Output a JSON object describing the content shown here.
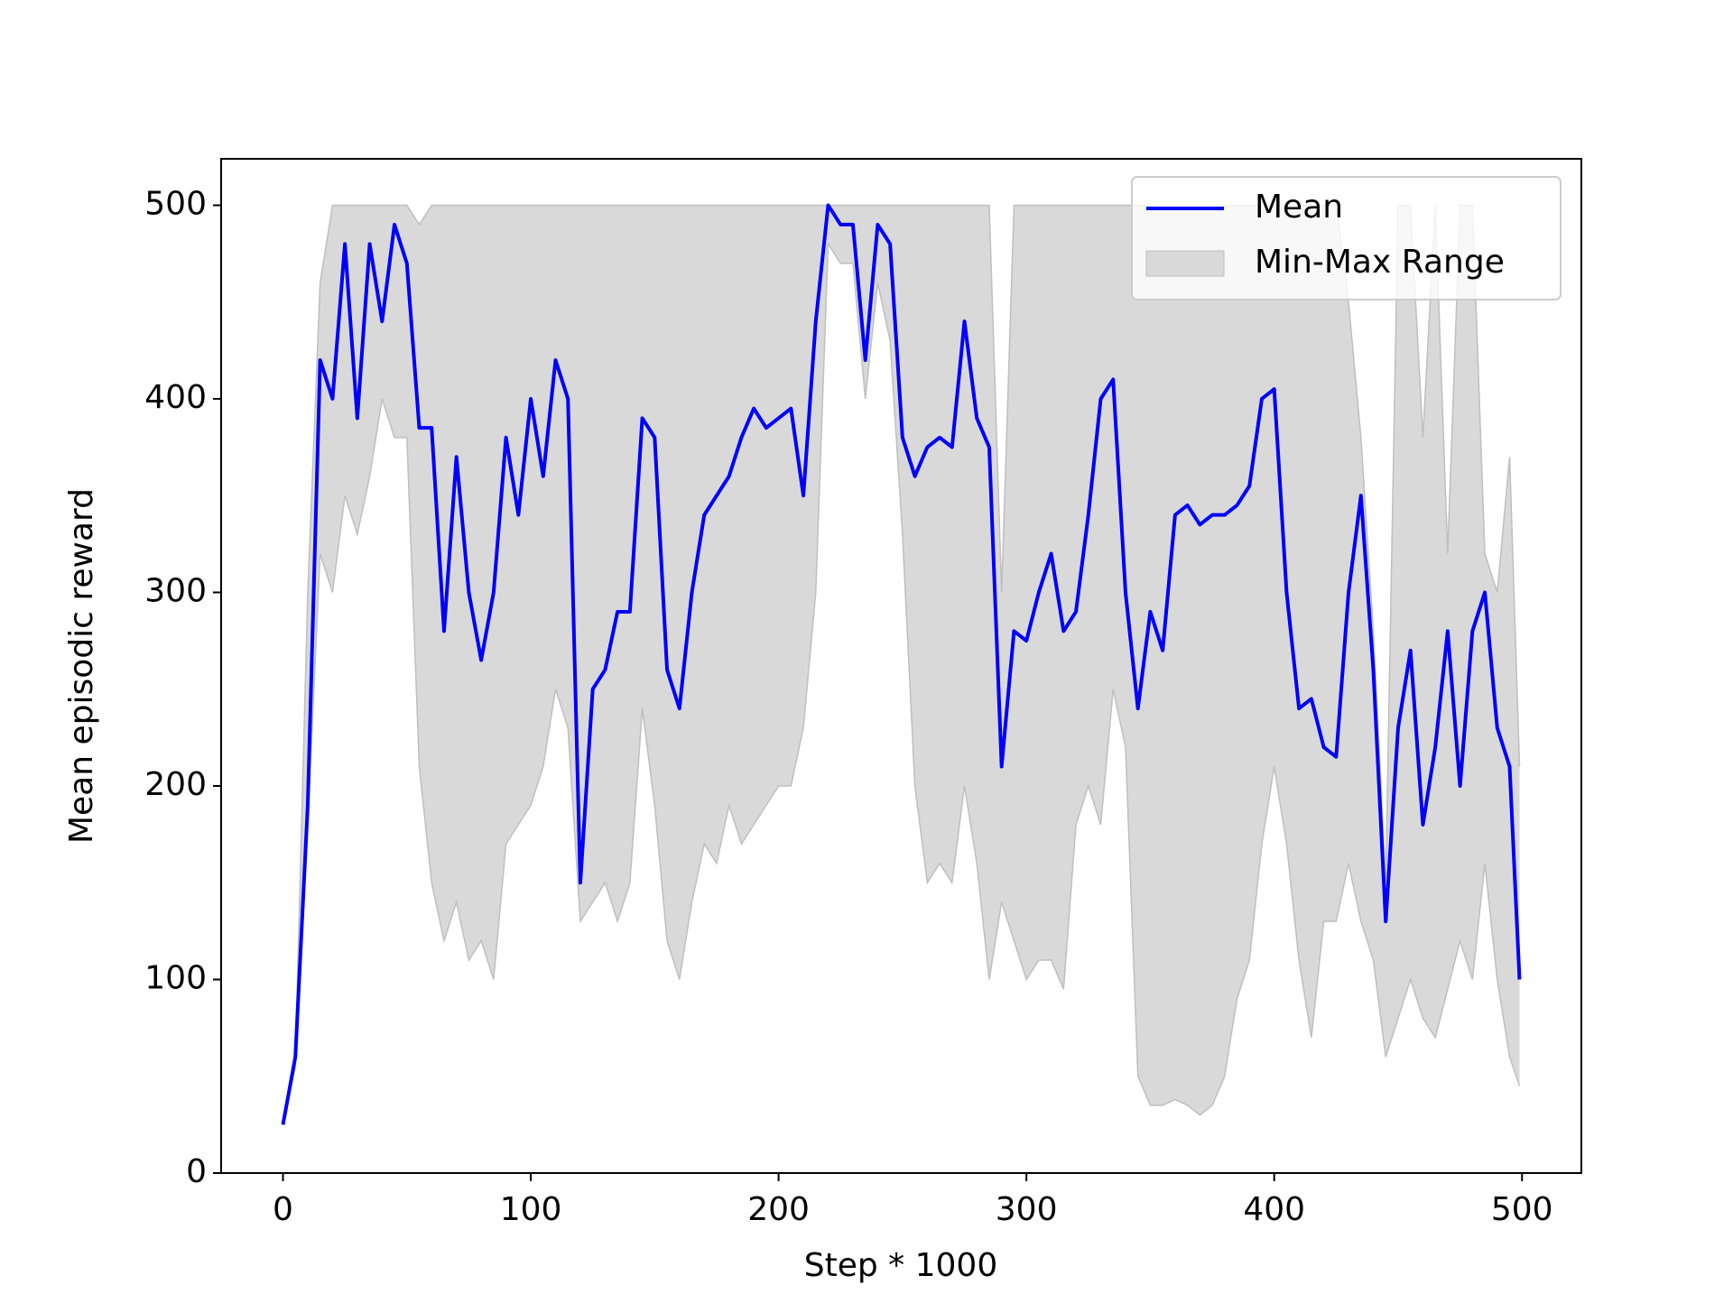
{
  "chart_data": {
    "type": "line",
    "x_label": "Step * 1000",
    "y_label": "Mean episodic reward",
    "x": [
      0,
      5,
      10,
      15,
      20,
      25,
      30,
      35,
      40,
      45,
      50,
      55,
      60,
      65,
      70,
      75,
      80,
      85,
      90,
      95,
      100,
      105,
      110,
      115,
      120,
      125,
      130,
      135,
      140,
      145,
      150,
      155,
      160,
      165,
      170,
      175,
      180,
      185,
      190,
      195,
      200,
      205,
      210,
      215,
      220,
      225,
      230,
      235,
      240,
      245,
      250,
      255,
      260,
      265,
      270,
      275,
      280,
      285,
      290,
      295,
      300,
      305,
      310,
      315,
      320,
      325,
      330,
      335,
      340,
      345,
      350,
      355,
      360,
      365,
      370,
      375,
      380,
      385,
      390,
      395,
      400,
      405,
      410,
      415,
      420,
      425,
      430,
      435,
      440,
      445,
      450,
      455,
      460,
      465,
      470,
      475,
      480,
      485,
      490,
      495,
      499
    ],
    "series": [
      {
        "name": "Mean",
        "color": "#0000ff",
        "values": [
          25,
          60,
          190,
          420,
          400,
          480,
          390,
          480,
          440,
          490,
          470,
          385,
          385,
          280,
          370,
          300,
          265,
          300,
          380,
          340,
          400,
          360,
          420,
          400,
          150,
          250,
          260,
          290,
          290,
          390,
          380,
          260,
          240,
          300,
          340,
          350,
          360,
          380,
          395,
          385,
          390,
          395,
          350,
          440,
          500,
          490,
          490,
          420,
          490,
          480,
          380,
          360,
          375,
          380,
          375,
          440,
          390,
          375,
          210,
          280,
          275,
          300,
          320,
          280,
          290,
          340,
          400,
          410,
          300,
          240,
          290,
          270,
          340,
          345,
          335,
          340,
          340,
          345,
          355,
          400,
          405,
          300,
          240,
          245,
          220,
          215,
          300,
          350,
          260,
          130,
          230,
          270,
          180,
          220,
          280,
          200,
          280,
          300,
          230,
          210,
          100
        ]
      },
      {
        "name": "Min-Max Range",
        "color": "#d9d9d9",
        "edge": "#bfbfbf",
        "lower": [
          25,
          55,
          180,
          320,
          300,
          350,
          330,
          360,
          400,
          380,
          380,
          210,
          150,
          120,
          140,
          110,
          120,
          100,
          170,
          180,
          190,
          210,
          250,
          230,
          130,
          140,
          150,
          130,
          150,
          240,
          190,
          120,
          100,
          140,
          170,
          160,
          190,
          170,
          180,
          190,
          200,
          200,
          230,
          300,
          480,
          470,
          470,
          400,
          460,
          430,
          330,
          200,
          150,
          160,
          150,
          200,
          160,
          100,
          140,
          120,
          100,
          110,
          110,
          95,
          180,
          200,
          180,
          250,
          220,
          50,
          35,
          35,
          38,
          35,
          30,
          35,
          50,
          90,
          110,
          170,
          210,
          170,
          110,
          70,
          130,
          130,
          160,
          130,
          110,
          60,
          80,
          100,
          80,
          70,
          95,
          120,
          100,
          160,
          100,
          60,
          45
        ],
        "upper": [
          25,
          60,
          300,
          460,
          500,
          500,
          500,
          500,
          500,
          500,
          500,
          490,
          500,
          500,
          500,
          500,
          500,
          500,
          500,
          500,
          500,
          500,
          500,
          500,
          500,
          500,
          500,
          500,
          500,
          500,
          500,
          500,
          500,
          500,
          500,
          500,
          500,
          500,
          500,
          500,
          500,
          500,
          500,
          500,
          500,
          500,
          500,
          500,
          500,
          500,
          500,
          500,
          500,
          500,
          500,
          500,
          500,
          500,
          300,
          500,
          500,
          500,
          500,
          500,
          500,
          500,
          500,
          500,
          500,
          500,
          500,
          500,
          500,
          500,
          500,
          500,
          500,
          500,
          500,
          500,
          500,
          500,
          500,
          500,
          500,
          500,
          450,
          380,
          280,
          150,
          500,
          500,
          380,
          500,
          320,
          500,
          500,
          320,
          300,
          370,
          210
        ]
      }
    ],
    "xlim": [
      -24.95,
      523.95
    ],
    "ylim": [
      0,
      524
    ],
    "xticks": [
      0,
      100,
      200,
      300,
      400,
      500
    ],
    "yticks": [
      0,
      100,
      200,
      300,
      400,
      500
    ],
    "legend": "upper right"
  }
}
